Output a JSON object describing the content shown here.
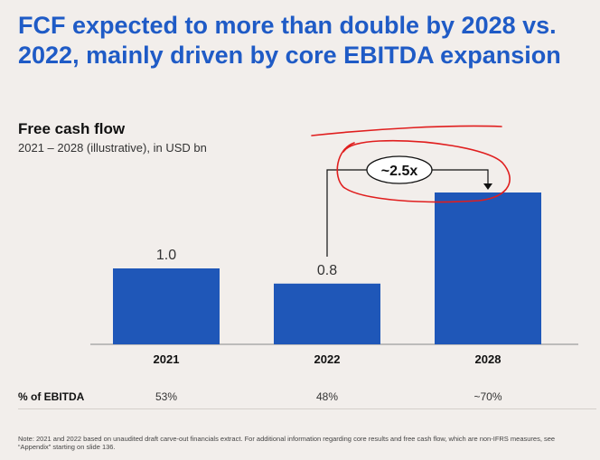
{
  "headline": "FCF expected to more than double by 2028 vs. 2022, mainly driven by core EBITDA expansion",
  "chart_data": {
    "type": "bar",
    "title": "Free cash flow",
    "subtitle": "2021 – 2028 (illustrative), in USD bn",
    "categories": [
      "2021",
      "2022",
      "2028"
    ],
    "values": [
      1.0,
      0.8,
      2.0
    ],
    "value_labels": [
      "1.0",
      "0.8",
      ""
    ],
    "bar_color": "#1f57b8",
    "annotation": "~2.5x",
    "annotation_color": "#e01e1e"
  },
  "ebitda_row": {
    "label": "% of EBITDA",
    "values": [
      "53%",
      "48%",
      "~70%"
    ]
  },
  "note": "Note: 2021 and 2022 based on unaudited draft carve-out financials extract. For additional information regarding core results and free cash flow, which are non-IFRS measures, see “Appendix” starting on slide 136."
}
